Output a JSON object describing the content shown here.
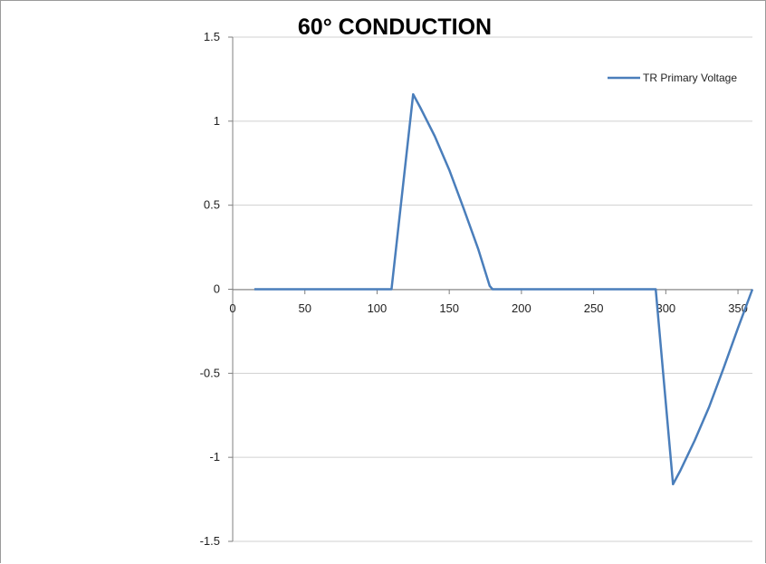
{
  "chart_data": {
    "type": "line",
    "title": "60° CONDUCTION",
    "xlabel": "",
    "ylabel": "",
    "xlim": [
      0,
      360
    ],
    "ylim": [
      -1.5,
      1.5
    ],
    "x_ticks": [
      0,
      50,
      100,
      150,
      200,
      250,
      300,
      350
    ],
    "x_tick_labels": [
      "0",
      "50",
      "100",
      "150",
      "200",
      "250",
      "300",
      "350"
    ],
    "y_ticks": [
      1.5,
      1,
      0.5,
      0,
      -0.5,
      -1,
      -1.5
    ],
    "y_tick_labels": [
      "1.5",
      "1",
      "0.5",
      "0",
      "-0.5",
      "-1",
      "-1.5"
    ],
    "grid": "horizontal",
    "legend_position": "top-right",
    "colors": {
      "series": "#4a7ebb",
      "grid": "#d0d0d0",
      "axis": "#7f7f7f"
    },
    "series": [
      {
        "name": "TR Primary Voltage",
        "x": [
          15,
          30,
          60,
          90,
          105,
          110,
          125,
          130,
          140,
          150,
          160,
          170,
          178,
          180,
          200,
          250,
          285,
          293,
          305,
          310,
          320,
          330,
          340,
          350,
          360
        ],
        "y": [
          0,
          0,
          0,
          0,
          0,
          0,
          1.16,
          1.08,
          0.91,
          0.71,
          0.48,
          0.24,
          0.02,
          0,
          0,
          0,
          0,
          0,
          -1.16,
          -1.08,
          -0.9,
          -0.7,
          -0.47,
          -0.23,
          0
        ]
      }
    ]
  }
}
